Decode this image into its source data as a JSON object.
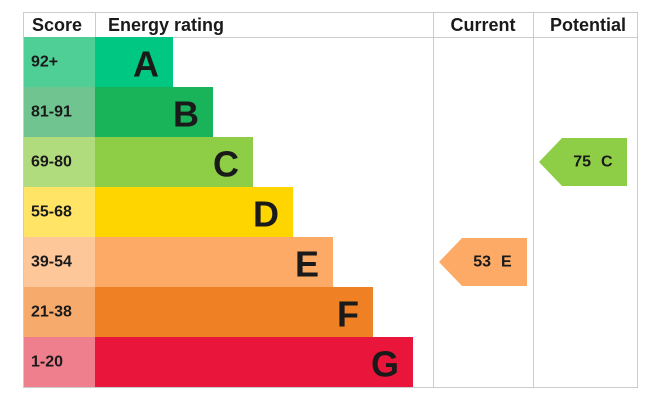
{
  "headers": {
    "score": "Score",
    "rating": "Energy rating",
    "current": "Current",
    "potential": "Potential"
  },
  "bands": [
    {
      "range": "92+",
      "letter": "A",
      "color": "#00c781",
      "light": "#4fcf95"
    },
    {
      "range": "81-91",
      "letter": "B",
      "color": "#19b459",
      "light": "#6fc48f"
    },
    {
      "range": "69-80",
      "letter": "C",
      "color": "#8dce46",
      "light": "#b1dc7e"
    },
    {
      "range": "55-68",
      "letter": "D",
      "color": "#ffd500",
      "light": "#ffe465"
    },
    {
      "range": "39-54",
      "letter": "E",
      "color": "#fcaa65",
      "light": "#fdc79a"
    },
    {
      "range": "21-38",
      "letter": "F",
      "color": "#ef8023",
      "light": "#f6ab6c"
    },
    {
      "range": "1-20",
      "letter": "G",
      "color": "#e9153b",
      "light": "#f07f8e"
    }
  ],
  "current": {
    "value": 53,
    "letter": "E"
  },
  "potential": {
    "value": 75,
    "letter": "C"
  }
}
